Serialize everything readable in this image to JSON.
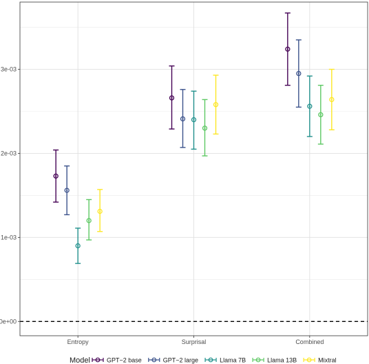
{
  "chart_data": {
    "type": "errorbar",
    "categories": [
      "Entropy",
      "Surprisal",
      "Combined"
    ],
    "y_ticks": [
      {
        "value": 0,
        "label": "0e+00"
      },
      {
        "value": 0.001,
        "label": "1e-03"
      },
      {
        "value": 0.002,
        "label": "2e-03"
      },
      {
        "value": 0.003,
        "label": "3e-03"
      }
    ],
    "ylim": [
      -0.00017,
      0.0038
    ],
    "grid": true,
    "reference_line": {
      "y": 0,
      "style": "dashed",
      "color": "#000000"
    },
    "legend": {
      "title": "Model",
      "position": "bottom"
    },
    "series": [
      {
        "name": "GPT−2 base",
        "color": "#440154",
        "values": [
          0.00173,
          0.00266,
          0.00324
        ],
        "lower": [
          0.00142,
          0.00229,
          0.00281
        ],
        "upper": [
          0.00204,
          0.00304,
          0.00367
        ]
      },
      {
        "name": "GPT−2 large",
        "color": "#3b528b",
        "values": [
          0.00156,
          0.00241,
          0.00295
        ],
        "lower": [
          0.00127,
          0.00207,
          0.00255
        ],
        "upper": [
          0.00185,
          0.00276,
          0.00335
        ]
      },
      {
        "name": "Llama 7B",
        "color": "#21908c",
        "values": [
          0.0009,
          0.0024,
          0.00256
        ],
        "lower": [
          0.00069,
          0.00205,
          0.0022
        ],
        "upper": [
          0.00111,
          0.00274,
          0.00292
        ]
      },
      {
        "name": "Llama 13B",
        "color": "#5dc863",
        "values": [
          0.0012,
          0.0023,
          0.00246
        ],
        "lower": [
          0.00097,
          0.00197,
          0.00211
        ],
        "upper": [
          0.00145,
          0.00264,
          0.00281
        ]
      },
      {
        "name": "Mixtral",
        "color": "#fde725",
        "values": [
          0.00131,
          0.00258,
          0.00264
        ],
        "lower": [
          0.00107,
          0.00223,
          0.00228
        ],
        "upper": [
          0.00157,
          0.00293,
          0.003
        ]
      }
    ]
  }
}
